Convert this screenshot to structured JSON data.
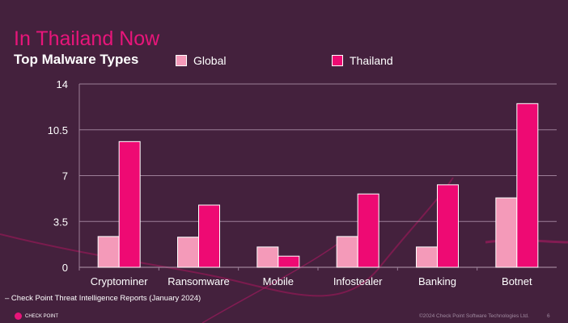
{
  "header": {
    "title": "In Thailand Now",
    "subtitle": "Top Malware Types"
  },
  "colors": {
    "global": "#f49ab9",
    "thailand": "#ee0a73"
  },
  "chart_data": {
    "type": "bar",
    "title": "Top Malware Types",
    "categories": [
      "Cryptominer",
      "Ransomware",
      "Mobile",
      "Infostealer",
      "Banking",
      "Botnet"
    ],
    "series": [
      {
        "name": "Global",
        "values": [
          2.35,
          2.3,
          1.55,
          2.35,
          1.55,
          5.3
        ]
      },
      {
        "name": "Thailand",
        "values": [
          9.6,
          4.75,
          0.85,
          5.6,
          6.3,
          12.5
        ]
      }
    ],
    "yticks": [
      "0",
      "3.5",
      "7",
      "10.5",
      "14"
    ],
    "ylim": [
      0,
      14
    ],
    "grid": true,
    "legend": "top"
  },
  "footer": {
    "source": "– Check Point Threat Intelligence Reports (January 2024)",
    "logo": "CHECK POINT",
    "copyright": "©2024 Check Point Software Technologies Ltd.",
    "page": "6"
  }
}
